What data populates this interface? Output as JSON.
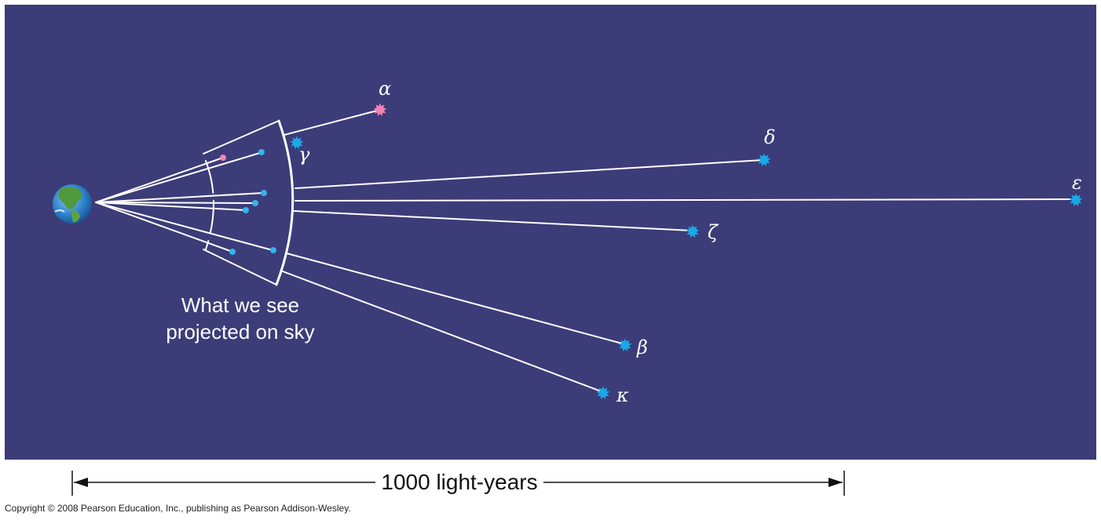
{
  "colors": {
    "sky": "#3c3c78",
    "line": "#ffffff",
    "star_blue": "#1aa8e8",
    "star_pink": "#f083b4",
    "dot_blue": "#34b4ec",
    "dot_pink": "#ee86b8"
  },
  "icons": {
    "observer": "earth-globe-icon",
    "star": "star-burst-icon"
  },
  "stars": [
    {
      "label": "α",
      "color": "pink"
    },
    {
      "label": "γ",
      "color": "blue"
    },
    {
      "label": "δ",
      "color": "blue"
    },
    {
      "label": "ε",
      "color": "blue"
    },
    {
      "label": "ζ",
      "color": "blue"
    },
    {
      "label": "β",
      "color": "blue"
    },
    {
      "label": "κ",
      "color": "blue"
    }
  ],
  "caption": {
    "line1": "What we see",
    "line2": "projected on sky"
  },
  "scale_bar": {
    "label": "1000 light-years"
  },
  "copyright": "Copyright © 2008 Pearson Education, Inc., publishing as Pearson Addison-Wesley."
}
